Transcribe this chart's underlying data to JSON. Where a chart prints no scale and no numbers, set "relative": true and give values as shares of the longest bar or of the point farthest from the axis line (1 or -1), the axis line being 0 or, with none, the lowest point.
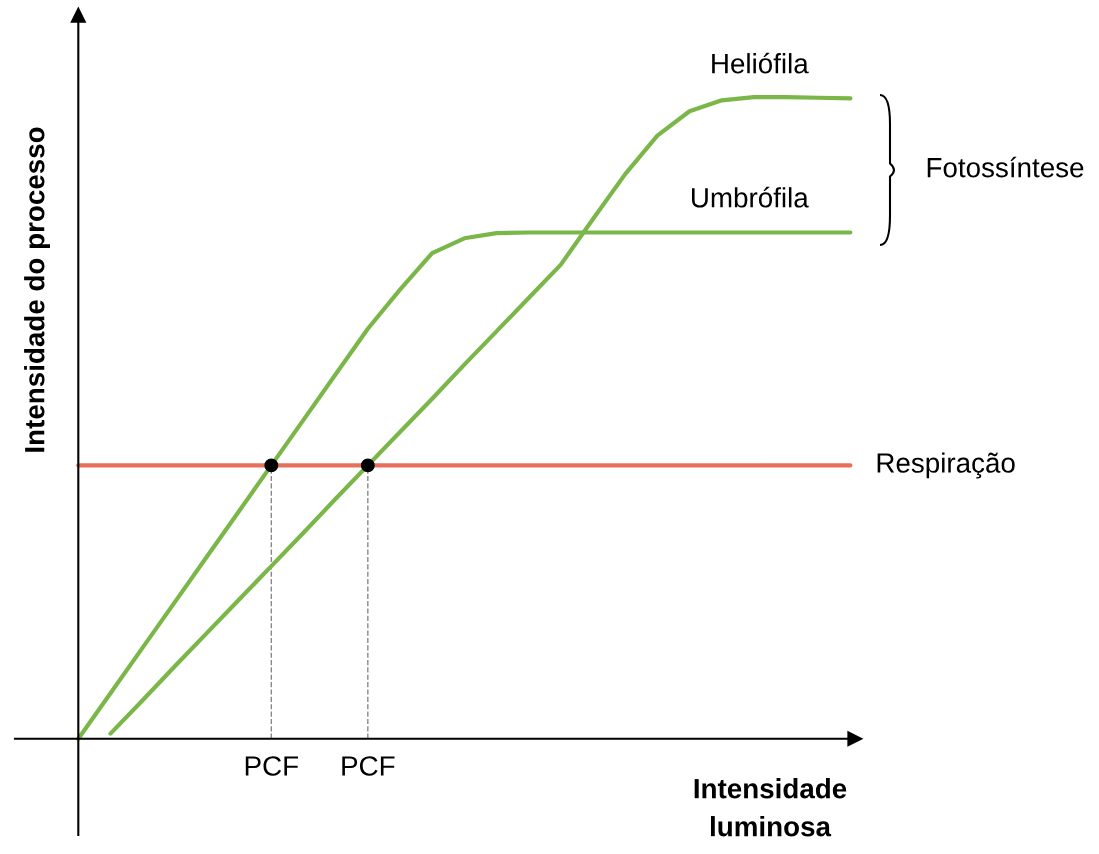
{
  "chart_data": {
    "type": "line",
    "relative": true,
    "xlabel": "Intensidade\nluminosa",
    "ylabel": "Intensidade do processo",
    "tick_labels": "x",
    "grid": false,
    "legend": false,
    "marker": "none",
    "line_style": "solid",
    "annotations": [
      "Fotossíntese"
    ],
    "categories": [
      null,
      null,
      null,
      null,
      null,
      null,
      "PCF",
      null,
      null,
      "PCF",
      null,
      null,
      null,
      null,
      null,
      null,
      null,
      null,
      null,
      null,
      null,
      null,
      null,
      null,
      null
    ],
    "series": [
      {
        "name": "Heliófila",
        "color": "#7ab648",
        "values": [
          null,
          0.008,
          0.06,
          0.113,
          0.165,
          0.217,
          0.269,
          0.321,
          0.374,
          0.426,
          0.478,
          0.53,
          0.583,
          0.635,
          0.687,
          0.739,
          0.81,
          0.88,
          0.94,
          0.978,
          0.995,
          1.0,
          1.0,
          0.999,
          0.998
        ]
      },
      {
        "name": "Umbrófila",
        "color": "#7ab648",
        "values": [
          0,
          0.071,
          0.142,
          0.213,
          0.284,
          0.355,
          0.426,
          0.497,
          0.568,
          0.639,
          0.7,
          0.757,
          0.78,
          0.788,
          0.789,
          0.789,
          0.789,
          0.789,
          0.789,
          0.789,
          0.789,
          0.789,
          0.789,
          0.789,
          0.789
        ]
      },
      {
        "name": "Respiração",
        "color": "#e8705a",
        "values": [
          0.426,
          0.426,
          0.426,
          0.426,
          0.426,
          0.426,
          0.426,
          0.426,
          0.426,
          0.426,
          0.426,
          0.426,
          0.426,
          0.426,
          0.426,
          0.426,
          0.426,
          0.426,
          0.426,
          0.426,
          0.426,
          0.426,
          0.426,
          0.426,
          0.426
        ]
      },
      {
        "type": "lollipop",
        "color": "#000000",
        "marker": "circle",
        "line_style": "dashed",
        "values": [
          null,
          null,
          null,
          null,
          null,
          null,
          0.426,
          null,
          null,
          0.426,
          null,
          null,
          null,
          null,
          null,
          null,
          null,
          null,
          null,
          null,
          null,
          null,
          null,
          null,
          null
        ]
      }
    ]
  }
}
